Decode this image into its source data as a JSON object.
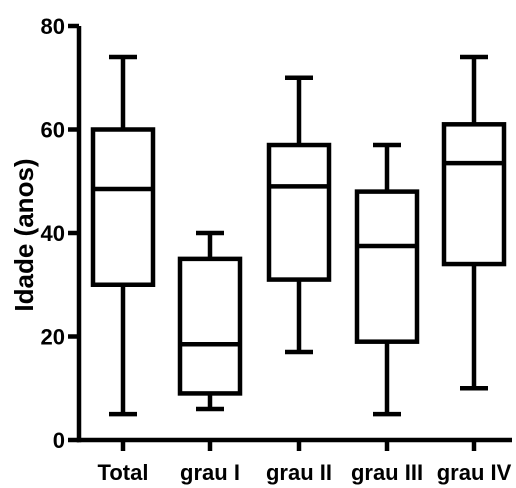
{
  "chart_data": {
    "type": "boxplot",
    "title": "",
    "xlabel": "",
    "ylabel": "Idade (anos)",
    "ylim": [
      0,
      80
    ],
    "yticks": [
      "0",
      "20",
      "40",
      "60",
      "80"
    ],
    "grid": false,
    "categories": [
      "Total",
      "grau I",
      "grau II",
      "grau III",
      "grau IV"
    ],
    "boxes": [
      {
        "label": "Total",
        "min": 5,
        "q1": 30,
        "median": 48.5,
        "q3": 60,
        "max": 74
      },
      {
        "label": "grau I",
        "min": 6,
        "q1": 9,
        "median": 18.5,
        "q3": 35,
        "max": 40
      },
      {
        "label": "grau II",
        "min": 17,
        "q1": 31,
        "median": 49,
        "q3": 57,
        "max": 70
      },
      {
        "label": "grau III",
        "min": 5,
        "q1": 19,
        "median": 37.5,
        "q3": 48,
        "max": 57
      },
      {
        "label": "grau IV",
        "min": 10,
        "q1": 34,
        "median": 53.5,
        "q3": 61,
        "max": 74
      }
    ],
    "colors": {
      "stroke": "#000000",
      "fill": "#ffffff"
    }
  }
}
